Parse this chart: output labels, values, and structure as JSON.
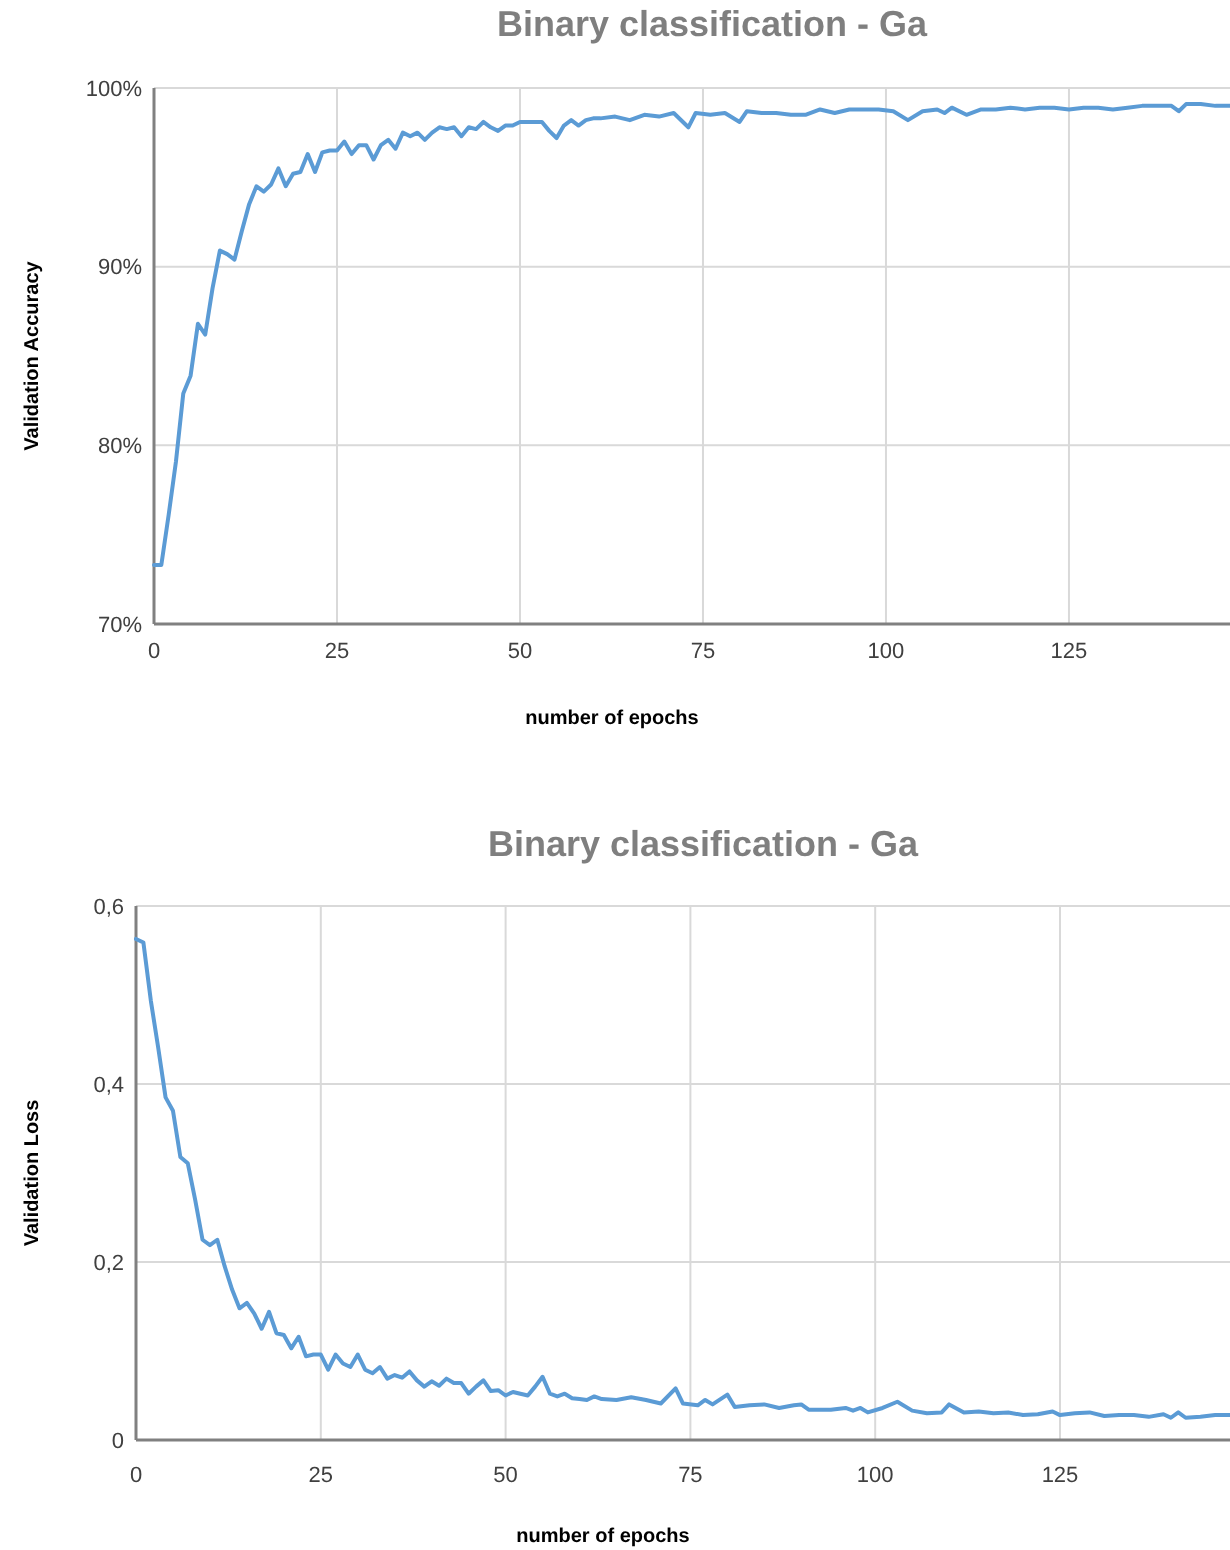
{
  "chart_data": [
    {
      "type": "line",
      "title": "Binary classification - Ga",
      "xlabel": "number of epochs",
      "ylabel": "Validation Accuracy",
      "grid": true,
      "marker": "none",
      "line_style": "solid",
      "xlim": [
        0,
        147
      ],
      "xticks": [
        0,
        25,
        50,
        75,
        100,
        125
      ],
      "ylim": [
        70,
        100
      ],
      "yticks": [
        {
          "value": 70,
          "label": "70%"
        },
        {
          "value": 80,
          "label": "80%"
        },
        {
          "value": 90,
          "label": "90%"
        },
        {
          "value": 100,
          "label": "100%"
        }
      ],
      "series": [
        {
          "color": "#5b9bd5",
          "x": [
            0,
            1,
            2,
            3,
            4,
            5,
            6,
            7,
            8,
            9,
            10,
            11,
            12,
            13,
            14,
            15,
            16,
            17,
            18,
            19,
            20,
            21,
            22,
            23,
            24,
            25,
            26,
            27,
            28,
            29,
            30,
            31,
            32,
            33,
            34,
            35,
            36,
            37,
            38,
            39,
            40,
            41,
            42,
            43,
            44,
            45,
            46,
            47,
            48,
            49,
            50,
            51,
            52,
            53,
            54,
            55,
            56,
            57,
            58,
            59,
            60,
            61,
            63,
            65,
            67,
            69,
            71,
            73,
            74,
            76,
            78,
            80,
            81,
            83,
            85,
            87,
            89,
            91,
            93,
            95,
            97,
            99,
            101,
            103,
            105,
            107,
            108,
            109,
            111,
            113,
            115,
            117,
            119,
            121,
            123,
            125,
            127,
            129,
            131,
            133,
            135,
            137,
            139,
            140,
            141,
            143,
            145,
            147
          ],
          "values": [
            73.3,
            73.3,
            76.1,
            79.1,
            82.9,
            83.9,
            86.8,
            86.2,
            88.8,
            90.9,
            90.7,
            90.4,
            92.0,
            93.5,
            94.5,
            94.2,
            94.6,
            95.5,
            94.5,
            95.2,
            95.3,
            96.3,
            95.3,
            96.4,
            96.5,
            96.5,
            97.0,
            96.3,
            96.8,
            96.8,
            96.0,
            96.8,
            97.1,
            96.6,
            97.5,
            97.3,
            97.5,
            97.1,
            97.5,
            97.8,
            97.7,
            97.8,
            97.3,
            97.8,
            97.7,
            98.1,
            97.8,
            97.6,
            97.9,
            97.9,
            98.1,
            98.1,
            98.1,
            98.1,
            97.6,
            97.2,
            97.9,
            98.2,
            97.9,
            98.2,
            98.3,
            98.3,
            98.4,
            98.2,
            98.5,
            98.4,
            98.6,
            97.8,
            98.6,
            98.5,
            98.6,
            98.1,
            98.7,
            98.6,
            98.6,
            98.5,
            98.5,
            98.8,
            98.6,
            98.8,
            98.8,
            98.8,
            98.7,
            98.2,
            98.7,
            98.8,
            98.6,
            98.9,
            98.5,
            98.8,
            98.8,
            98.9,
            98.8,
            98.9,
            98.9,
            98.8,
            98.9,
            98.9,
            98.8,
            98.9,
            99.0,
            99.0,
            99.0,
            98.7,
            99.1,
            99.1,
            99.0,
            99.0
          ]
        }
      ]
    },
    {
      "type": "line",
      "title": "Binary classification - Ga",
      "xlabel": "number of epochs",
      "ylabel": "Validation Loss",
      "grid": true,
      "marker": "none",
      "line_style": "solid",
      "xlim": [
        0,
        148
      ],
      "xticks": [
        0,
        25,
        50,
        75,
        100,
        125
      ],
      "ylim": [
        0,
        0.6
      ],
      "yticks": [
        0,
        {
          "value": 0.2,
          "label": "0,2"
        },
        {
          "value": 0.4,
          "label": "0,4"
        },
        {
          "value": 0.6,
          "label": "0,6"
        }
      ],
      "series": [
        {
          "color": "#5b9bd5",
          "x": [
            0,
            1,
            2,
            3,
            4,
            5,
            6,
            7,
            8,
            9,
            10,
            11,
            12,
            13,
            14,
            15,
            16,
            17,
            18,
            19,
            20,
            21,
            22,
            23,
            24,
            25,
            26,
            27,
            28,
            29,
            30,
            31,
            32,
            33,
            34,
            35,
            36,
            37,
            38,
            39,
            40,
            41,
            42,
            43,
            44,
            45,
            46,
            47,
            48,
            49,
            50,
            51,
            52,
            53,
            54,
            55,
            56,
            57,
            58,
            59,
            60,
            61,
            62,
            63,
            65,
            67,
            69,
            70,
            71,
            73,
            74,
            76,
            77,
            78,
            80,
            81,
            83,
            85,
            87,
            89,
            90,
            91,
            94,
            96,
            97,
            98,
            99,
            101,
            103,
            105,
            107,
            109,
            110,
            112,
            114,
            116,
            118,
            120,
            122,
            124,
            125,
            127,
            129,
            131,
            133,
            135,
            137,
            139,
            140,
            141,
            142,
            144,
            146,
            148
          ],
          "values": [
            0.563,
            0.559,
            0.494,
            0.441,
            0.385,
            0.37,
            0.318,
            0.311,
            0.27,
            0.225,
            0.219,
            0.225,
            0.195,
            0.169,
            0.148,
            0.154,
            0.142,
            0.125,
            0.144,
            0.12,
            0.118,
            0.103,
            0.116,
            0.094,
            0.096,
            0.096,
            0.079,
            0.096,
            0.086,
            0.082,
            0.096,
            0.079,
            0.075,
            0.082,
            0.069,
            0.073,
            0.07,
            0.077,
            0.067,
            0.06,
            0.066,
            0.061,
            0.069,
            0.064,
            0.064,
            0.052,
            0.06,
            0.067,
            0.055,
            0.056,
            0.05,
            0.054,
            0.052,
            0.05,
            0.06,
            0.071,
            0.052,
            0.049,
            0.052,
            0.047,
            0.046,
            0.045,
            0.049,
            0.046,
            0.045,
            0.048,
            0.045,
            0.043,
            0.041,
            0.058,
            0.041,
            0.039,
            0.045,
            0.04,
            0.051,
            0.037,
            0.039,
            0.04,
            0.036,
            0.039,
            0.04,
            0.034,
            0.034,
            0.036,
            0.033,
            0.036,
            0.031,
            0.036,
            0.043,
            0.033,
            0.03,
            0.031,
            0.04,
            0.031,
            0.032,
            0.03,
            0.031,
            0.028,
            0.029,
            0.032,
            0.028,
            0.03,
            0.031,
            0.027,
            0.028,
            0.028,
            0.026,
            0.029,
            0.025,
            0.031,
            0.025,
            0.026,
            0.028,
            0.028
          ]
        }
      ]
    }
  ]
}
